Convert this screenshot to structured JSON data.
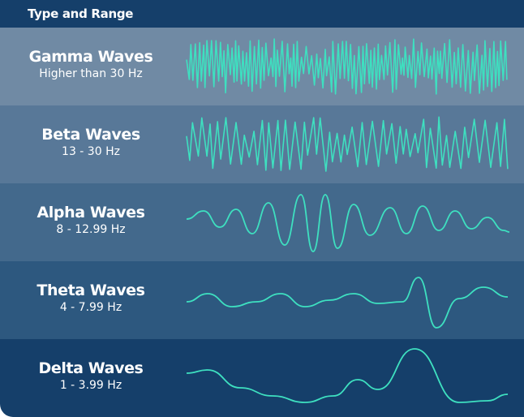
{
  "header": {
    "title": "Type and Range"
  },
  "colors": {
    "wave": "#3ee0c0",
    "header": "#153f6a"
  },
  "rows": [
    {
      "name": "Gamma Waves",
      "range": "Higher than 30 Hz",
      "bg": "#708aa4"
    },
    {
      "name": "Beta Waves",
      "range": "13 - 30 Hz",
      "bg": "#587898"
    },
    {
      "name": "Alpha Waves",
      "range": "8 - 12.99 Hz",
      "bg": "#43698c"
    },
    {
      "name": "Theta Waves",
      "range": "4 - 7.99 Hz",
      "bg": "#2d587f"
    },
    {
      "name": "Delta Waves",
      "range": "1 - 3.99 Hz",
      "bg": "#153f6a"
    }
  ]
}
